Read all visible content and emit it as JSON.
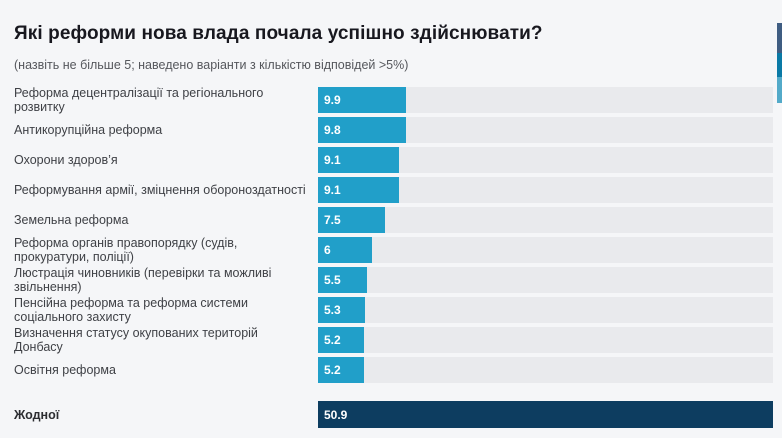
{
  "header": {
    "title": "Які реформи нова влада почала успішно здійснювати?",
    "subtitle": "(назвіть не більше 5; наведено варіанти з кількістю відповідей >5%)"
  },
  "chart_data": {
    "type": "bar",
    "orientation": "horizontal",
    "title": "Які реформи нова влада почала успішно здійснювати?",
    "subtitle": "(назвіть не більше 5; наведено варіанти з кількістю відповідей >5%)",
    "xlim": [
      0,
      50.9
    ],
    "grid": false,
    "legend": false,
    "categories": [
      "Реформа децентралізації та регіонального розвитку",
      "Антикорупційна реформа",
      "Охорони здоров’я",
      "Реформування армії, зміцнення обороноздатності",
      "Земельна реформа",
      "Реформа органів правопорядку (судів, прокуратури, поліції)",
      "Люстрація чиновників (перевірки та можливі звільнення)",
      "Пенсійна реформа та реформа системи соціального захисту",
      "Визначення статусу окупованих територій Донбасу",
      "Освітня реформа",
      "Жодної"
    ],
    "values": [
      9.9,
      9.8,
      9.1,
      9.1,
      7.5,
      6,
      5.5,
      5.3,
      5.2,
      5.2,
      50.9
    ],
    "value_labels": [
      "9.9",
      "9.8",
      "9.1",
      "9.1",
      "7.5",
      "6",
      "5.5",
      "5.3",
      "5.2",
      "5.2",
      "50.9"
    ],
    "highlight_index": 10,
    "colors": {
      "bar": "#219fc9",
      "highlight_bar": "#0d3d60",
      "track": "#e9eaed",
      "background": "#f5f6f8",
      "value_text": "#ffffff"
    }
  },
  "decor": {
    "edge_strip_colors": [
      "#3f5d82",
      "#0a7aa6",
      "#53aac9"
    ]
  }
}
